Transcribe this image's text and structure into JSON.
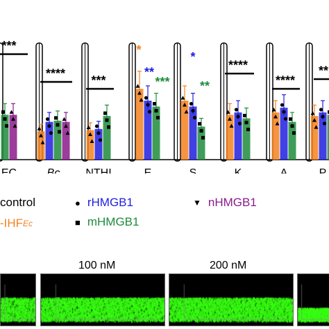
{
  "chart_data": {
    "type": "bar",
    "categories": [
      "EC",
      "Bc",
      "NTHI",
      "E",
      "S",
      "K",
      "A",
      "P"
    ],
    "category_italic": [
      false,
      true,
      false,
      false,
      false,
      false,
      false,
      false
    ],
    "series": [
      {
        "name": "control",
        "color": "#f58220",
        "values": [
          null,
          24,
          25,
          60,
          50,
          38,
          40,
          37
        ]
      },
      {
        "name": "rHMGB1",
        "color": "#1e1ee0",
        "values": [
          null,
          32,
          26,
          50,
          45,
          40,
          44,
          40
        ]
      },
      {
        "name": "mHMGB1",
        "color": "#1e8c3c",
        "values": [
          38,
          33,
          37,
          45,
          28,
          35,
          32,
          38
        ]
      },
      {
        "name": "nHMGB1",
        "color": "#8b1a8b",
        "values": [
          38,
          32,
          null,
          null,
          null,
          null,
          null,
          null
        ]
      }
    ],
    "significance": [
      {
        "category": "EC",
        "label": "***",
        "color": "#000000"
      },
      {
        "category": "Bc",
        "label": "****",
        "color": "#000000"
      },
      {
        "category": "NTHI",
        "label": "***",
        "color": "#000000"
      },
      {
        "category": "E",
        "label": "*",
        "color": "#f58220"
      },
      {
        "category": "E",
        "label": "**",
        "color": "#1e1ee0"
      },
      {
        "category": "E",
        "label": "***",
        "color": "#1e8c3c"
      },
      {
        "category": "S",
        "label": "*",
        "color": "#1e1ee0"
      },
      {
        "category": "S",
        "label": "**",
        "color": "#1e8c3c"
      },
      {
        "category": "K",
        "label": "****",
        "color": "#000000"
      },
      {
        "category": "A",
        "label": "****",
        "color": "#000000"
      },
      {
        "category": "P",
        "label": "**",
        "color": "#000000"
      }
    ],
    "ylim": [
      0,
      100
    ],
    "title": "",
    "xlabel": "",
    "ylabel": ""
  },
  "legend": {
    "control_label": "control",
    "ihf_label": "-IHF",
    "ihf_sub": "Ec",
    "rhmgb1_label": "rHMGB1",
    "mhmgb1_label": "mHMGB1",
    "nhmgb1_label": "nHMGB1",
    "colors": {
      "orange": "#f58220",
      "blue": "#1e1ee0",
      "green": "#1e8c3c",
      "purple": "#8b1a8b"
    }
  },
  "concentrations": {
    "c100": "100 nM",
    "c200": "200 nM"
  },
  "panels": {
    "fill_color": "#39ff14"
  }
}
